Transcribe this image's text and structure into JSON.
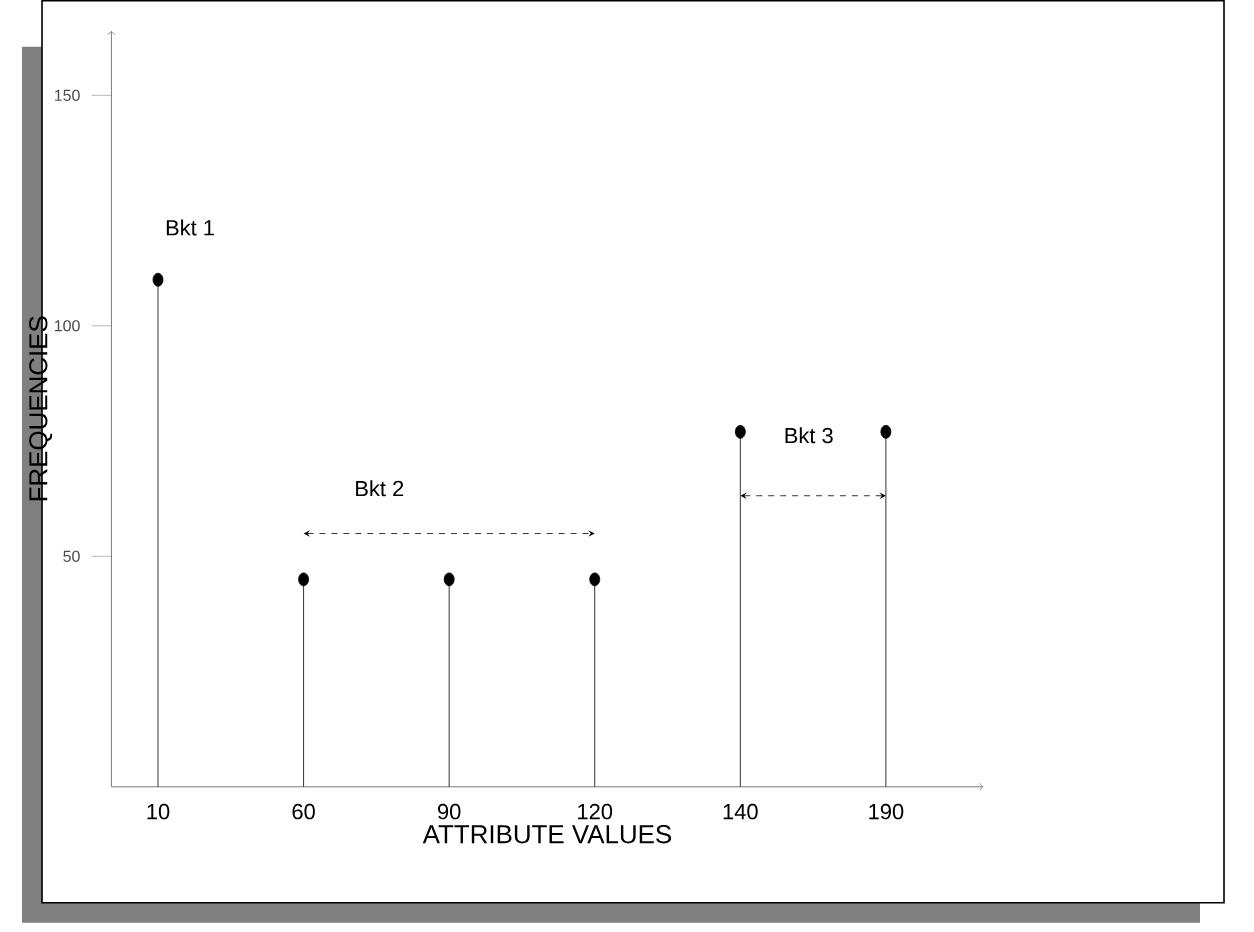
{
  "chart_data": {
    "type": "lollipop",
    "xlabel": "ATTRIBUTE  VALUES",
    "ylabel": "FREQUENCIES",
    "categories": [
      "10",
      "60",
      "90",
      "120",
      "140",
      "190"
    ],
    "values": [
      110,
      45,
      45,
      45,
      77,
      77
    ],
    "color": "#000000",
    "marker": "circle",
    "ylim": [
      0,
      164
    ],
    "yticks": [
      50,
      100,
      150
    ],
    "annotations": [
      "Bkt 1",
      "Bkt 2",
      "Bkt 3"
    ]
  }
}
